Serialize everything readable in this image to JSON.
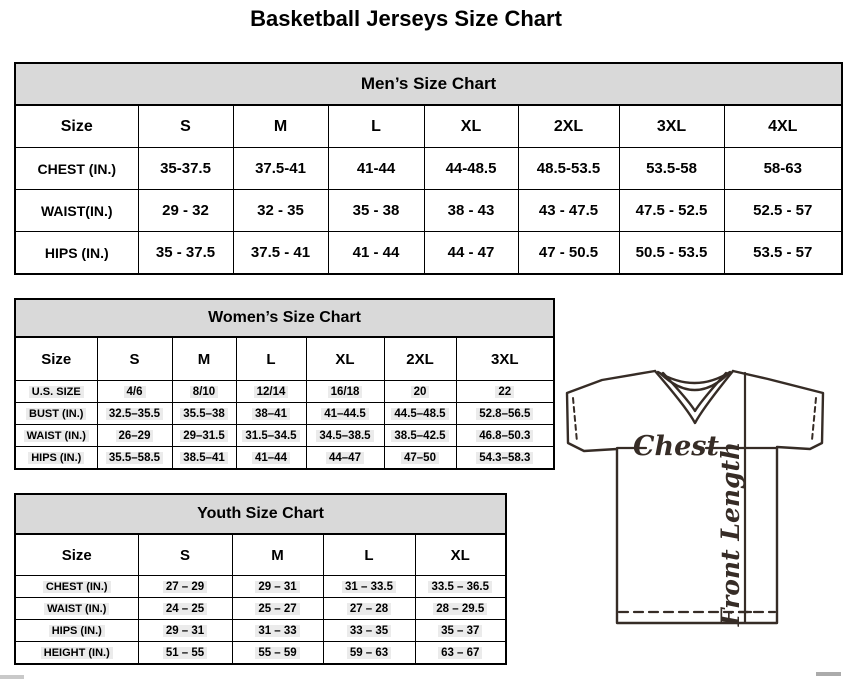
{
  "page": {
    "title": "Basketball Jerseys Size Chart"
  },
  "colors": {
    "section_header_bg": "#d9d9d9",
    "table_border": "#000000",
    "diagram_stroke": "#362c26",
    "cell_highlight": "#ebebeb"
  },
  "tables": {
    "men": {
      "title": "Men’s Size Chart",
      "header": [
        "Size",
        "S",
        "M",
        "L",
        "XL",
        "2XL",
        "3XL",
        "4XL"
      ],
      "rows": [
        {
          "label": "CHEST (IN.)",
          "values": [
            "35-37.5",
            "37.5-41",
            "41-44",
            "44-48.5",
            "48.5-53.5",
            "53.5-58",
            "58-63"
          ]
        },
        {
          "label": "WAIST(IN.)",
          "values": [
            "29 - 32",
            "32 - 35",
            "35 - 38",
            "38 - 43",
            "43 - 47.5",
            "47.5 - 52.5",
            "52.5 - 57"
          ]
        },
        {
          "label": "HIPS (IN.)",
          "values": [
            "35 - 37.5",
            "37.5 - 41",
            "41 - 44",
            "44 - 47",
            "47 - 50.5",
            "50.5 - 53.5",
            "53.5 - 57"
          ]
        }
      ]
    },
    "women": {
      "title": "Women’s Size Chart",
      "header": [
        "Size",
        "S",
        "M",
        "L",
        "XL",
        "2XL",
        "3XL"
      ],
      "rows": [
        {
          "label": "U.S. SIZE",
          "values": [
            "4/6",
            "8/10",
            "12/14",
            "16/18",
            "20",
            "22"
          ]
        },
        {
          "label": "BUST (IN.)",
          "values": [
            "32.5–35.5",
            "35.5–38",
            "38–41",
            "41–44.5",
            "44.5–48.5",
            "52.8–56.5"
          ]
        },
        {
          "label": "WAIST (IN.)",
          "values": [
            "26–29",
            "29–31.5",
            "31.5–34.5",
            "34.5–38.5",
            "38.5–42.5",
            "46.8–50.3"
          ]
        },
        {
          "label": "HIPS (IN.)",
          "values": [
            "35.5–58.5",
            "38.5–41",
            "41–44",
            "44–47",
            "47–50",
            "54.3–58.3"
          ]
        }
      ]
    },
    "youth": {
      "title": "Youth Size Chart",
      "header": [
        "Size",
        "S",
        "M",
        "L",
        "XL"
      ],
      "rows": [
        {
          "label": "CHEST (IN.)",
          "values": [
            "27 – 29",
            "29 – 31",
            "31 – 33.5",
            "33.5 – 36.5"
          ]
        },
        {
          "label": "WAIST (IN.)",
          "values": [
            "24 – 25",
            "25 – 27",
            "27 – 28",
            "28 – 29.5"
          ]
        },
        {
          "label": "HIPS (IN.)",
          "values": [
            "29 – 31",
            "31 – 33",
            "33 – 35",
            "35 – 37"
          ]
        },
        {
          "label": "HEIGHT (IN.)",
          "values": [
            "51 – 55",
            "55 – 59",
            "59 – 63",
            "63 – 67"
          ]
        }
      ]
    }
  },
  "diagram": {
    "chest_label": "Chest",
    "front_length_label": "Front Length"
  }
}
